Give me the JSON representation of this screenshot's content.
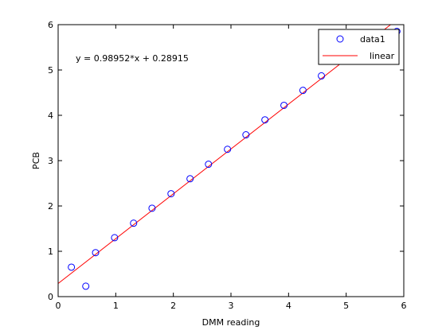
{
  "chart_data": {
    "type": "scatter",
    "xlabel": "DMM reading",
    "ylabel": "PCB",
    "xlim": [
      0,
      6
    ],
    "ylim": [
      0,
      6
    ],
    "xticks": [
      0,
      1,
      2,
      3,
      4,
      5,
      6
    ],
    "yticks": [
      0,
      1,
      2,
      3,
      4,
      5,
      6
    ],
    "grid": false,
    "legend_position": "top-right",
    "annotation": "y = 0.98952*x + 0.28915",
    "series": [
      {
        "name": "data1",
        "type": "scatter",
        "marker": "circle-open",
        "color": "#0000ff",
        "x": [
          0.23,
          0.48,
          0.65,
          0.98,
          1.31,
          1.63,
          1.96,
          2.29,
          2.61,
          2.94,
          3.26,
          3.59,
          3.92,
          4.25,
          4.57,
          4.9,
          5.23,
          5.88
        ],
        "y": [
          0.65,
          0.23,
          0.97,
          1.3,
          1.62,
          1.95,
          2.27,
          2.6,
          2.92,
          3.25,
          3.57,
          3.9,
          4.22,
          4.55,
          4.87,
          5.2,
          5.52,
          5.85
        ]
      },
      {
        "name": "linear",
        "type": "line",
        "color": "#ff0000",
        "slope": 0.98952,
        "intercept": 0.28915
      }
    ]
  }
}
